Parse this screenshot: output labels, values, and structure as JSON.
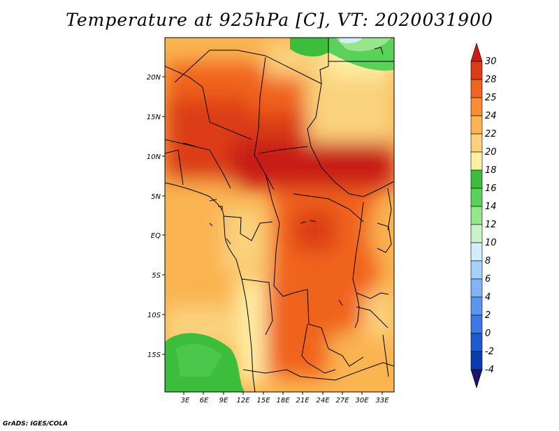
{
  "title": "Temperature at 925hPa [C], VT: 2020031900",
  "credit": "GrADS: IGES/COLA",
  "chart_data": {
    "type": "heatmap",
    "variable": "Temperature at 925hPa",
    "units": "C",
    "valid_time": "2020031900",
    "lon_ticks": [
      "3E",
      "6E",
      "9E",
      "12E",
      "15E",
      "18E",
      "21E",
      "24E",
      "27E",
      "30E",
      "33E"
    ],
    "lat_ticks": [
      "20N",
      "15N",
      "10N",
      "5N",
      "EQ",
      "5S",
      "10S",
      "15S"
    ],
    "xlim": [
      0,
      34
    ],
    "ylim": [
      -19,
      24
    ],
    "colorbar": {
      "levels": [
        "-4",
        "-2",
        "0",
        "2",
        "4",
        "6",
        "8",
        "10",
        "12",
        "14",
        "16",
        "18",
        "20",
        "22",
        "24",
        "25",
        "28",
        "30"
      ],
      "colors": [
        "#1c1468",
        "#0a3cb4",
        "#1e5ad2",
        "#3c78e6",
        "#5a96f0",
        "#82b4f5",
        "#a5d2fa",
        "#d2eefa",
        "#c8f5c8",
        "#96e68c",
        "#5ad25a",
        "#3cbe3c",
        "#fff0a5",
        "#fad27d",
        "#fab450",
        "#fa8c32",
        "#f0641e",
        "#dc3c14",
        "#c81e14"
      ]
    }
  }
}
